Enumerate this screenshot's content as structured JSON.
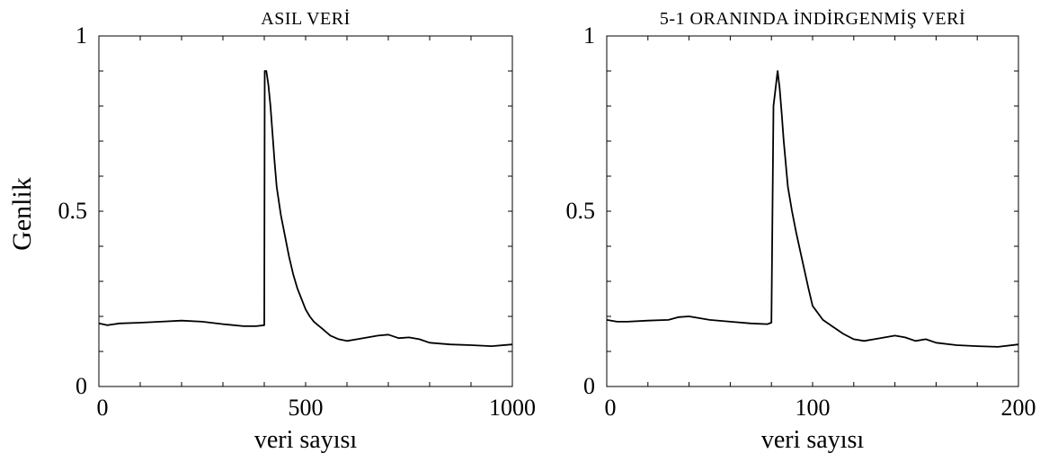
{
  "figure": {
    "ylabel": "Genlik"
  },
  "chart_data": [
    {
      "type": "line",
      "title": "ASIL VERİ",
      "xlabel": "veri sayısı",
      "ylabel": "Genlik",
      "xlim": [
        0,
        1000
      ],
      "ylim": [
        0,
        1
      ],
      "x_ticks": [
        0,
        500,
        1000
      ],
      "x_tick_labels": [
        "0",
        "500",
        "1000"
      ],
      "y_ticks": [
        0,
        0.5,
        1
      ],
      "y_tick_labels": [
        "0",
        "0.5",
        "1"
      ],
      "grid": false,
      "line_color": "#000000",
      "series": [
        {
          "x": [
            0,
            20,
            50,
            100,
            150,
            200,
            250,
            300,
            350,
            380,
            400,
            401,
            405,
            410,
            415,
            420,
            425,
            430,
            440,
            450,
            460,
            470,
            480,
            490,
            500,
            510,
            520,
            530,
            540,
            550,
            560,
            580,
            600,
            625,
            650,
            675,
            700,
            725,
            750,
            775,
            800,
            850,
            900,
            950,
            1000
          ],
          "y": [
            0.18,
            0.175,
            0.18,
            0.182,
            0.185,
            0.188,
            0.185,
            0.178,
            0.172,
            0.172,
            0.175,
            0.9,
            0.9,
            0.86,
            0.8,
            0.72,
            0.64,
            0.57,
            0.49,
            0.43,
            0.37,
            0.32,
            0.28,
            0.25,
            0.22,
            0.2,
            0.185,
            0.175,
            0.165,
            0.155,
            0.145,
            0.135,
            0.13,
            0.135,
            0.14,
            0.145,
            0.148,
            0.138,
            0.14,
            0.135,
            0.125,
            0.12,
            0.118,
            0.115,
            0.12
          ]
        }
      ]
    },
    {
      "type": "line",
      "title": "5-1 ORANINDA İNDİRGENMİŞ VERİ",
      "xlabel": "veri sayısı",
      "ylabel": "",
      "xlim": [
        0,
        200
      ],
      "ylim": [
        0,
        1
      ],
      "x_ticks": [
        0,
        100,
        200
      ],
      "x_tick_labels": [
        "0",
        "100",
        "200"
      ],
      "y_ticks": [
        0,
        0.5,
        1
      ],
      "y_tick_labels": [
        "0",
        "0.5",
        "1"
      ],
      "grid": false,
      "line_color": "#000000",
      "series": [
        {
          "x": [
            0,
            5,
            10,
            20,
            30,
            35,
            40,
            50,
            60,
            70,
            78,
            80,
            81,
            82,
            83,
            84,
            85,
            86,
            88,
            90,
            92,
            95,
            98,
            100,
            105,
            110,
            115,
            120,
            125,
            130,
            135,
            140,
            145,
            150,
            155,
            160,
            170,
            180,
            190,
            200
          ],
          "y": [
            0.19,
            0.185,
            0.185,
            0.188,
            0.19,
            0.198,
            0.2,
            0.19,
            0.185,
            0.18,
            0.178,
            0.182,
            0.8,
            0.85,
            0.9,
            0.85,
            0.78,
            0.7,
            0.57,
            0.5,
            0.44,
            0.36,
            0.28,
            0.23,
            0.19,
            0.17,
            0.15,
            0.135,
            0.13,
            0.135,
            0.14,
            0.145,
            0.14,
            0.13,
            0.135,
            0.125,
            0.118,
            0.115,
            0.113,
            0.12
          ]
        }
      ]
    }
  ]
}
